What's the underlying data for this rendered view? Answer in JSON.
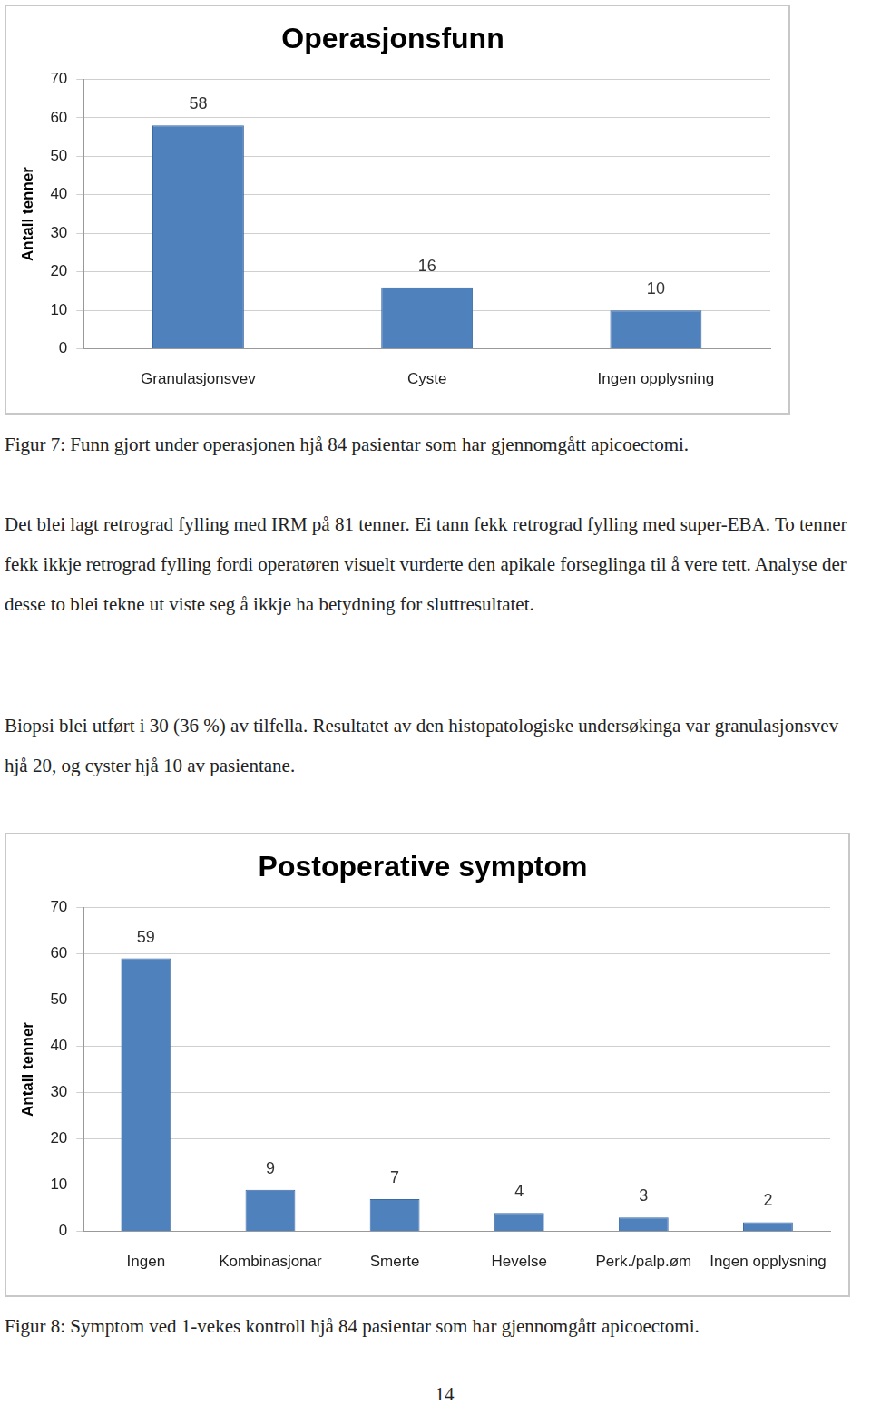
{
  "chart_data": [
    {
      "type": "bar",
      "title": "Operasjonsfunn",
      "y_label": "Antall tenner",
      "categories": [
        "Granulasjonsvev",
        "Cyste",
        "Ingen opplysning"
      ],
      "values": [
        58,
        16,
        10
      ],
      "color": "#4f81bd",
      "ylim": [
        0,
        70
      ],
      "yticks": [
        0,
        10,
        20,
        30,
        40,
        50,
        60,
        70
      ],
      "grid": true,
      "data_labels": true
    },
    {
      "type": "bar",
      "title": "Postoperative symptom",
      "y_label": "Antall tenner",
      "categories": [
        "Ingen",
        "Kombinasjonar",
        "Smerte",
        "Hevelse",
        "Perk./palp.øm",
        "Ingen opplysning"
      ],
      "values": [
        59,
        9,
        7,
        4,
        3,
        2
      ],
      "color": "#4f81bd",
      "ylim": [
        0,
        70
      ],
      "yticks": [
        0,
        10,
        20,
        30,
        40,
        50,
        60,
        70
      ],
      "grid": true,
      "data_labels": true
    }
  ],
  "document": {
    "figure_captions": [
      "Figur 7: Funn gjort under operasjonen hjå 84 pasientar som har gjennomgått apicoectomi.",
      "Figur 8: Symptom ved 1-vekes kontroll hjå 84 pasientar som har gjennomgått apicoectomi."
    ],
    "paragraphs": [
      "Det blei lagt retrograd fylling med IRM på 81 tenner. Ei tann fekk retrograd fylling med super-EBA. To tenner fekk ikkje retrograd fylling fordi operatøren visuelt vurderte den apikale forseglinga til å vere tett. Analyse der desse to blei tekne ut viste seg å ikkje ha betydning for sluttresultatet.",
      "Biopsi blei utført i 30 (36 %) av tilfella. Resultatet av den histopatologiske undersøkinga var granulasjonsvev hjå 20, og cyster hjå 10 av pasientane."
    ],
    "page_number": 14
  }
}
